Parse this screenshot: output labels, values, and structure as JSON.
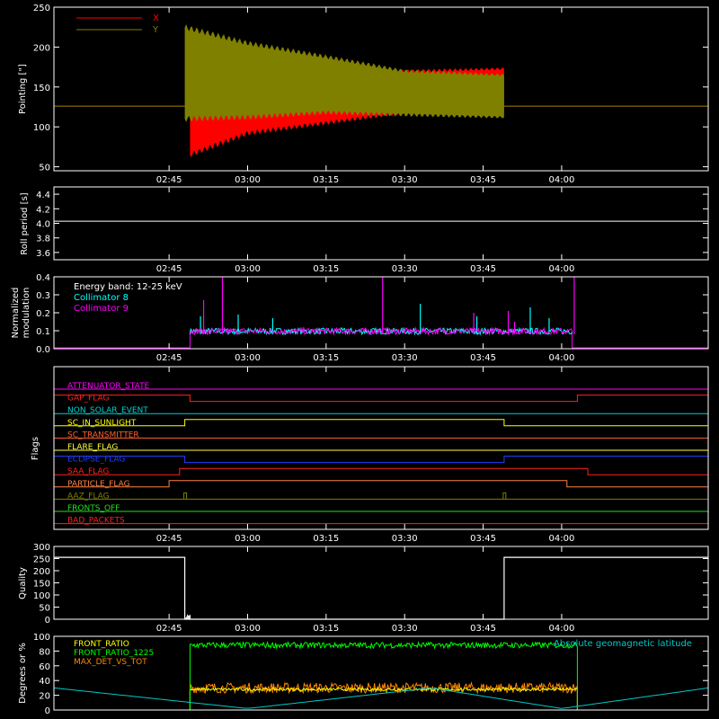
{
  "time_axis": {
    "range": [
      "02:23",
      "04:28"
    ],
    "ticks": [
      "02:45",
      "03:00",
      "03:15",
      "03:30",
      "03:45",
      "04:00"
    ]
  },
  "colors": {
    "background": "#000000",
    "axes": "#ffffff",
    "x_series": "#ff0000",
    "y_series": "#808000",
    "collimator8": "#00ffff",
    "collimator9": "#ff00ff",
    "front_ratio": "#ffff00",
    "front_ratio_1225": "#00ff00",
    "max_det": "#ff8800",
    "geomag": "#00c8c8"
  },
  "chart_data": [
    {
      "type": "area",
      "ylabel": "Pointing [\"]",
      "ylim": [
        45,
        250
      ],
      "yticks": [
        50,
        100,
        150,
        200,
        250
      ],
      "legend_placement": "top-left",
      "series": [
        {
          "name": "X",
          "baseline": 126,
          "envelope_time": [
            "02:49",
            "03:00",
            "03:15",
            "03:30",
            "03:49"
          ],
          "upper": [
            160,
            152,
            155,
            170,
            173
          ],
          "lower": [
            65,
            92,
            105,
            118,
            120
          ]
        },
        {
          "name": "Y",
          "baseline": 126,
          "envelope_time": [
            "02:48",
            "03:00",
            "03:15",
            "03:30",
            "03:49"
          ],
          "upper": [
            225,
            205,
            188,
            170,
            165
          ],
          "lower": [
            110,
            112,
            118,
            115,
            112
          ]
        }
      ]
    },
    {
      "type": "line",
      "ylabel": "Roll period [s]",
      "ylim": [
        3.5,
        4.5
      ],
      "yticks": [
        "3.6",
        "3.8",
        "4.0",
        "4.2",
        "4.4"
      ],
      "series": [
        {
          "name": "",
          "value": 4.03
        }
      ]
    },
    {
      "type": "bar",
      "ylabel": "Normalized modulation",
      "ylim": [
        0,
        0.4
      ],
      "yticks": [
        "0.0",
        "0.1",
        "0.2",
        "0.3",
        "0.4"
      ],
      "annotation": "Energy band: 12-25 keV",
      "active_range": [
        "02:49",
        "04:02"
      ],
      "series": [
        {
          "name": "Collimator 8",
          "spikes": [
            [
              2.85,
              0.18
            ],
            [
              2.97,
              0.19
            ],
            [
              3.08,
              0.17
            ],
            [
              3.55,
              0.25
            ],
            [
              3.73,
              0.18
            ],
            [
              3.9,
              0.23
            ],
            [
              3.96,
              0.17
            ]
          ]
        },
        {
          "name": "Collimator 9",
          "spikes": [
            [
              2.86,
              0.27
            ],
            [
              2.92,
              0.4
            ],
            [
              3.43,
              0.4
            ],
            [
              3.72,
              0.2
            ],
            [
              3.83,
              0.21
            ],
            [
              4.04,
              0.4
            ],
            [
              3.85,
              0.15
            ]
          ]
        }
      ]
    },
    {
      "type": "line",
      "ylabel": "Flags",
      "flags": [
        {
          "name": "ATTENUATOR_STATE",
          "color": "#ff00ff",
          "segments": [
            [
              "02:23",
              "04:28",
              0
            ]
          ]
        },
        {
          "name": "GAP_FLAG",
          "color": "#ff2020",
          "segments": [
            [
              "02:23",
              "02:49",
              1
            ],
            [
              "02:49",
              "04:03",
              0
            ],
            [
              "04:03",
              "04:28",
              1
            ]
          ]
        },
        {
          "name": "NON_SOLAR_EVENT",
          "color": "#00d0d0",
          "segments": [
            [
              "02:23",
              "04:28",
              0
            ]
          ]
        },
        {
          "name": "SC_IN_SUNLIGHT",
          "color": "#ffff00",
          "segments": [
            [
              "02:23",
              "02:48",
              0
            ],
            [
              "02:48",
              "03:49",
              1
            ],
            [
              "03:49",
              "04:28",
              0
            ]
          ]
        },
        {
          "name": "SC_TRANSMITTER",
          "color": "#ff6030",
          "segments": [
            [
              "02:23",
              "04:28",
              0
            ]
          ]
        },
        {
          "name": "FLARE_FLAG",
          "color": "#ffff40",
          "segments": [
            [
              "02:23",
              "04:28",
              0
            ]
          ]
        },
        {
          "name": "ECLIPSE_FLAG",
          "color": "#2040ff",
          "segments": [
            [
              "02:23",
              "02:48",
              1
            ],
            [
              "02:48",
              "03:49",
              0
            ],
            [
              "03:49",
              "04:28",
              1
            ]
          ]
        },
        {
          "name": "SAA_FLAG",
          "color": "#ff2020",
          "segments": [
            [
              "02:23",
              "02:47",
              0
            ],
            [
              "02:47",
              "04:05",
              1
            ],
            [
              "04:05",
              "04:28",
              0
            ]
          ]
        },
        {
          "name": "PARTICLE_FLAG",
          "color": "#ff8040",
          "segments": [
            [
              "02:23",
              "02:45",
              0
            ],
            [
              "02:45",
              "04:01",
              1
            ],
            [
              "04:01",
              "04:28",
              0
            ]
          ]
        },
        {
          "name": "AAZ_FLAG",
          "color": "#808000",
          "segments": [
            [
              "02:23",
              "04:28",
              0
            ]
          ],
          "pulses": [
            "02:48",
            "03:49"
          ]
        },
        {
          "name": "FRONTS_OFF",
          "color": "#20e020",
          "segments": [
            [
              "02:23",
              "04:28",
              0
            ]
          ]
        },
        {
          "name": "BAD_PACKETS",
          "color": "#ff2020",
          "segments": [
            [
              "02:23",
              "04:28",
              0
            ]
          ]
        }
      ]
    },
    {
      "type": "line",
      "ylabel": "Quality",
      "ylim": [
        0,
        300
      ],
      "yticks": [
        0,
        50,
        100,
        150,
        200,
        250,
        300
      ],
      "series": [
        {
          "name": "",
          "time": [
            "02:23",
            "02:48",
            "02:48",
            "03:49",
            "03:49",
            "04:28"
          ],
          "values": [
            255,
            255,
            0,
            0,
            255,
            255
          ]
        }
      ]
    },
    {
      "type": "line",
      "ylabel": "Degrees or %",
      "ylim": [
        0,
        100
      ],
      "yticks": [
        0,
        20,
        40,
        60,
        80,
        100
      ],
      "legend_placement": "top-left",
      "series": [
        {
          "name": "FRONT_RATIO",
          "level": 28
        },
        {
          "name": "FRONT_RATIO_1225",
          "level": 88
        },
        {
          "name": "MAX_DET_VS_TOT",
          "level": 30
        },
        {
          "name": "Absolute geomagnetic latitude",
          "time": [
            "02:23",
            "03:00",
            "03:35",
            "04:00",
            "04:28"
          ],
          "values": [
            30,
            2,
            30,
            2,
            30
          ]
        }
      ]
    }
  ]
}
